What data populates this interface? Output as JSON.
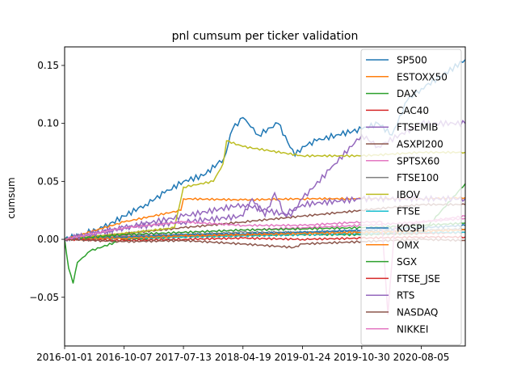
{
  "chart_data": {
    "type": "line",
    "title": "pnl cumsum per ticker validation",
    "xlabel": "",
    "ylabel": "cumsum",
    "x_range": [
      "2016-01-01",
      "2021-02-28"
    ],
    "ylim": [
      -0.092,
      0.166
    ],
    "x_ticks": [
      "2016-01-01",
      "2016-10-07",
      "2017-07-13",
      "2018-04-19",
      "2019-01-24",
      "2019-10-30",
      "2020-08-05"
    ],
    "y_ticks": [
      -0.05,
      0.0,
      0.05,
      0.1,
      0.15
    ],
    "y_tick_labels": [
      "−0.05",
      "0.00",
      "0.05",
      "0.10",
      "0.15"
    ],
    "grid": false,
    "legend_position": "top-right",
    "series": [
      {
        "name": "SP500",
        "color": "#1f77b4",
        "x": [
          "2016-01-01",
          "2016-04-01",
          "2016-07-01",
          "2016-10-07",
          "2017-01-15",
          "2017-04-15",
          "2017-07-13",
          "2017-10-15",
          "2018-01-20",
          "2018-03-01",
          "2018-04-19",
          "2018-07-01",
          "2018-10-01",
          "2018-12-20",
          "2019-01-24",
          "2019-04-01",
          "2019-07-01",
          "2019-10-30",
          "2020-01-15",
          "2020-03-20",
          "2020-06-01",
          "2020-08-05",
          "2020-11-01",
          "2021-02-28"
        ],
        "y": [
          0.0,
          0.005,
          0.01,
          0.02,
          0.03,
          0.04,
          0.05,
          0.055,
          0.07,
          0.095,
          0.105,
          0.09,
          0.1,
          0.072,
          0.08,
          0.085,
          0.09,
          0.095,
          0.1,
          0.09,
          0.12,
          0.13,
          0.14,
          0.155
        ]
      },
      {
        "name": "ESTOXX50",
        "color": "#ff7f0e",
        "x": [
          "2016-01-01",
          "2016-10-07",
          "2017-07-01",
          "2017-07-13",
          "2018-04-19",
          "2019-01-24",
          "2019-10-30",
          "2020-08-05",
          "2021-02-28"
        ],
        "y": [
          0.0,
          0.015,
          0.025,
          0.035,
          0.034,
          0.035,
          0.035,
          0.035,
          0.036
        ]
      },
      {
        "name": "DAX",
        "color": "#2ca02c",
        "x": [
          "2016-01-01",
          "2016-01-20",
          "2016-02-10",
          "2016-03-01",
          "2016-05-01",
          "2016-10-07",
          "2017-07-13",
          "2018-04-19",
          "2019-01-24",
          "2019-10-30",
          "2020-08-05",
          "2021-02-28"
        ],
        "y": [
          0.0,
          -0.025,
          -0.038,
          -0.02,
          -0.01,
          0.0,
          0.002,
          0.003,
          0.004,
          0.004,
          0.005,
          0.048
        ]
      },
      {
        "name": "CAC40",
        "color": "#d62728",
        "x": [
          "2016-01-01",
          "2016-10-07",
          "2017-07-13",
          "2018-04-19",
          "2019-01-24",
          "2019-10-30",
          "2020-08-05",
          "2021-02-28"
        ],
        "y": [
          0.0,
          0.002,
          0.003,
          0.004,
          0.004,
          0.005,
          0.005,
          0.006
        ]
      },
      {
        "name": "FTSEMIB",
        "color": "#9467bd",
        "x": [
          "2016-01-01",
          "2016-10-07",
          "2017-07-13",
          "2018-04-19",
          "2018-12-01",
          "2019-01-24",
          "2019-06-01",
          "2019-10-30",
          "2020-01-15",
          "2020-08-05",
          "2021-02-28"
        ],
        "y": [
          0.0,
          0.01,
          0.02,
          0.03,
          0.02,
          0.035,
          0.06,
          0.09,
          0.08,
          0.1,
          0.1
        ]
      },
      {
        "name": "ASXPI200",
        "color": "#8c564b",
        "x": [
          "2016-01-01",
          "2016-10-07",
          "2017-07-13",
          "2018-04-19",
          "2019-01-24",
          "2019-10-30",
          "2020-08-05",
          "2021-02-28"
        ],
        "y": [
          0.0,
          0.005,
          0.01,
          0.015,
          0.02,
          0.025,
          0.03,
          0.03
        ]
      },
      {
        "name": "SPTSX60",
        "color": "#e377c2",
        "x": [
          "2016-01-01",
          "2016-10-07",
          "2017-07-13",
          "2018-04-19",
          "2019-01-24",
          "2019-10-30",
          "2020-08-05",
          "2021-02-28"
        ],
        "y": [
          0.0,
          0.003,
          0.006,
          0.008,
          0.01,
          0.012,
          0.015,
          0.018
        ]
      },
      {
        "name": "FTSE100",
        "color": "#7f7f7f",
        "x": [
          "2016-01-01",
          "2016-10-07",
          "2017-07-13",
          "2018-04-19",
          "2019-01-24",
          "2019-10-30",
          "2020-08-05",
          "2021-02-28"
        ],
        "y": [
          0.0,
          0.002,
          0.004,
          0.006,
          0.006,
          0.007,
          0.008,
          0.009
        ]
      },
      {
        "name": "IBOV",
        "color": "#bcbd22",
        "x": [
          "2016-01-01",
          "2016-10-07",
          "2017-06-01",
          "2017-07-13",
          "2017-12-01",
          "2018-01-15",
          "2018-02-01",
          "2018-04-19",
          "2019-01-24",
          "2019-10-30",
          "2020-08-05",
          "2021-02-28"
        ],
        "y": [
          0.0,
          0.005,
          0.01,
          0.045,
          0.05,
          0.065,
          0.085,
          0.08,
          0.072,
          0.072,
          0.075,
          0.075
        ]
      },
      {
        "name": "FTSE",
        "color": "#17becf",
        "x": [
          "2016-01-01",
          "2016-10-07",
          "2017-07-13",
          "2018-04-19",
          "2019-01-24",
          "2019-10-30",
          "2020-08-05",
          "2021-02-28"
        ],
        "y": [
          0.0,
          0.001,
          0.002,
          0.003,
          0.004,
          0.005,
          0.006,
          0.006
        ]
      },
      {
        "name": "KOSPI",
        "color": "#1f77b4",
        "x": [
          "2016-01-01",
          "2016-10-07",
          "2017-07-13",
          "2018-04-19",
          "2019-01-24",
          "2019-10-30",
          "2020-08-05",
          "2021-02-28"
        ],
        "y": [
          0.0,
          0.002,
          0.004,
          0.005,
          0.006,
          0.008,
          0.01,
          0.012
        ]
      },
      {
        "name": "OMX",
        "color": "#ff7f0e",
        "x": [
          "2016-01-01",
          "2016-10-07",
          "2017-07-13",
          "2018-04-19",
          "2019-01-24",
          "2019-10-30",
          "2020-08-05",
          "2021-02-28"
        ],
        "y": [
          0.0,
          0.001,
          0.003,
          0.004,
          0.005,
          0.006,
          0.007,
          0.008
        ]
      },
      {
        "name": "SGX",
        "color": "#2ca02c",
        "x": [
          "2016-01-01",
          "2016-10-07",
          "2017-07-13",
          "2018-04-19",
          "2019-01-24",
          "2019-10-30",
          "2020-08-05",
          "2021-02-28"
        ],
        "y": [
          0.0,
          0.004,
          0.006,
          0.008,
          0.009,
          0.01,
          0.012,
          0.014
        ]
      },
      {
        "name": "FTSE_JSE",
        "color": "#d62728",
        "x": [
          "2016-01-01",
          "2016-10-07",
          "2017-07-13",
          "2018-04-19",
          "2019-01-24",
          "2019-10-30",
          "2020-08-05",
          "2021-02-28"
        ],
        "y": [
          0.0,
          -0.001,
          0.0,
          0.001,
          0.0,
          0.001,
          0.002,
          0.002
        ]
      },
      {
        "name": "RTS",
        "color": "#9467bd",
        "x": [
          "2016-01-01",
          "2016-10-07",
          "2017-07-13",
          "2018-04-19",
          "2018-06-01",
          "2018-08-01",
          "2018-09-15",
          "2018-11-01",
          "2019-01-24",
          "2019-10-30",
          "2020-08-05",
          "2021-02-28"
        ],
        "y": [
          0.0,
          0.01,
          0.015,
          0.02,
          0.035,
          0.02,
          0.04,
          0.022,
          0.03,
          0.035,
          0.035,
          0.035
        ]
      },
      {
        "name": "NASDAQ",
        "color": "#8c564b",
        "x": [
          "2016-01-01",
          "2016-10-07",
          "2017-07-13",
          "2018-04-19",
          "2018-12-15",
          "2019-01-24",
          "2019-10-30",
          "2020-08-05",
          "2021-02-28"
        ],
        "y": [
          0.0,
          -0.002,
          -0.001,
          -0.004,
          -0.007,
          -0.004,
          -0.002,
          0.0,
          -0.001
        ]
      },
      {
        "name": "NIKKEI",
        "color": "#e377c2",
        "x": [
          "2016-01-01",
          "2016-10-07",
          "2017-07-13",
          "2018-04-19",
          "2019-01-24",
          "2019-10-30",
          "2020-02-01",
          "2020-03-01",
          "2020-04-01",
          "2020-08-05",
          "2021-02-28"
        ],
        "y": [
          0.0,
          0.01,
          0.015,
          0.012,
          0.012,
          0.015,
          0.015,
          -0.065,
          0.01,
          0.015,
          0.02
        ]
      }
    ]
  }
}
